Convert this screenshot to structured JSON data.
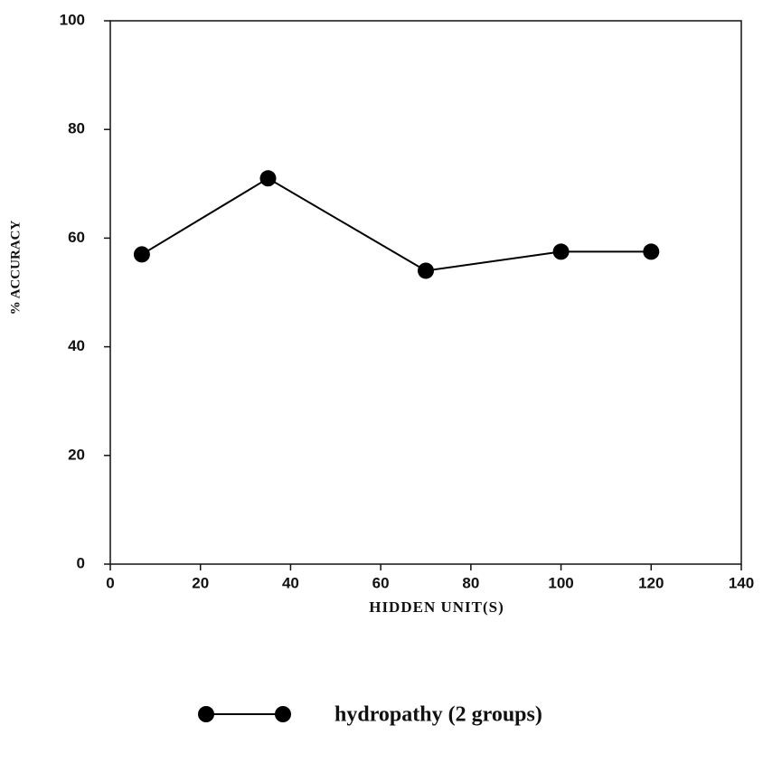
{
  "chart_data": {
    "type": "line",
    "x_label": "HIDDEN UNIT(S)",
    "y_label": "% ACCURACY",
    "x": [
      7,
      35,
      70,
      100,
      120
    ],
    "series": [
      {
        "name": "hydropathy (2 groups)",
        "color": "#000000",
        "values": [
          57,
          71,
          54,
          57.5,
          57.5
        ]
      }
    ],
    "xlim": [
      0,
      140
    ],
    "xticks": [
      0,
      20,
      40,
      60,
      80,
      100,
      120,
      140
    ],
    "ylim": [
      0,
      100
    ],
    "yticks": [
      0,
      20,
      40,
      60,
      80,
      100
    ],
    "grid": false
  }
}
